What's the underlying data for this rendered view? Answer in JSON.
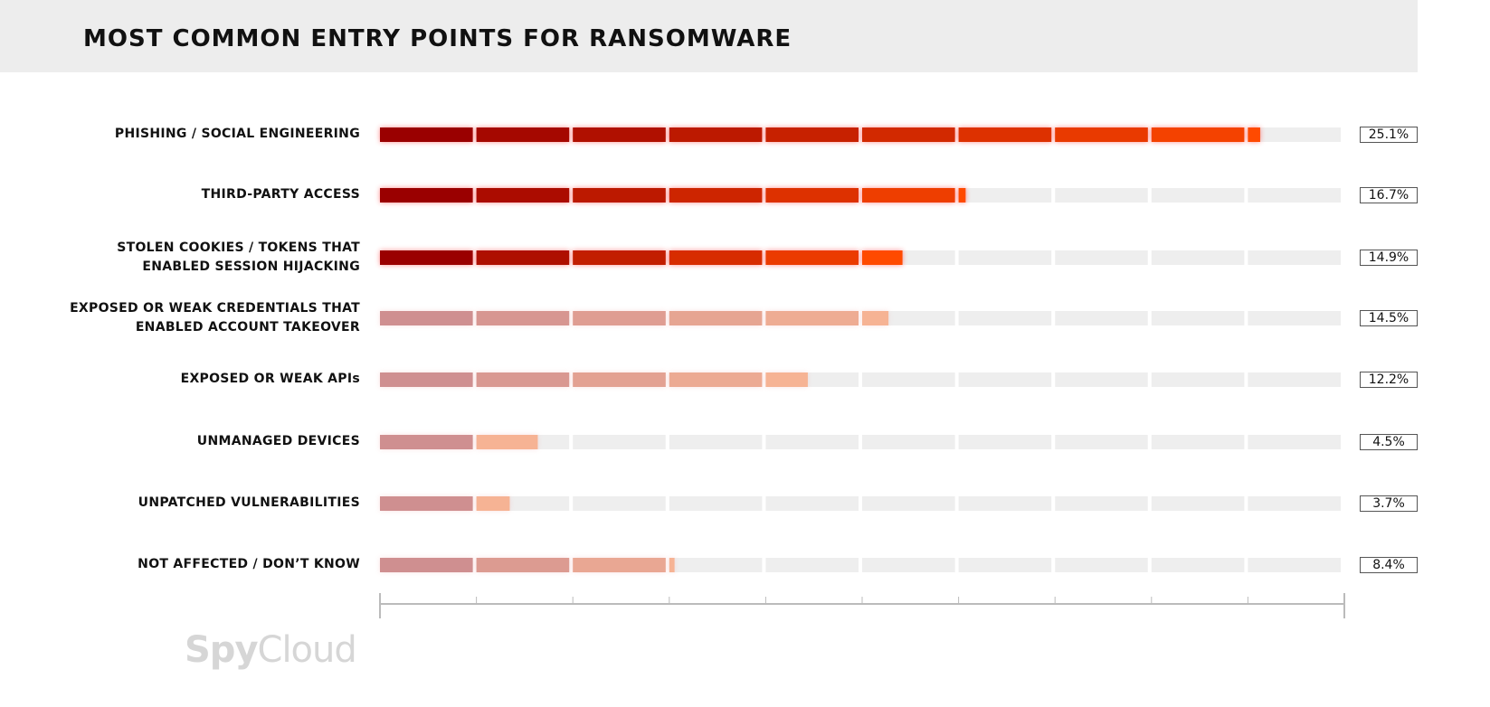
{
  "chart_data": {
    "type": "bar",
    "orientation": "horizontal",
    "title": "MOST COMMON ENTRY POINTS FOR RANSOMWARE",
    "categories": [
      "PHISHING / SOCIAL ENGINEERING",
      "THIRD-PARTY ACCESS",
      "STOLEN COOKIES / TOKENS THAT ENABLED SESSION HIJACKING",
      "EXPOSED OR WEAK CREDENTIALS THAT ENABLED ACCOUNT TAKEOVER",
      "EXPOSED OR WEAK APIs",
      "UNMANAGED DEVICES",
      "UNPATCHED VULNERABILITIES",
      "NOT AFFECTED / DON’T KNOW"
    ],
    "values": [
      25.1,
      16.7,
      14.9,
      14.5,
      12.2,
      4.5,
      3.7,
      8.4
    ],
    "value_labels": [
      "25.1%",
      "16.7%",
      "14.9%",
      "14.5%",
      "12.2%",
      "4.5%",
      "3.7%",
      "8.4%"
    ],
    "highlighted": [
      true,
      true,
      true,
      false,
      false,
      false,
      false,
      false
    ],
    "xlim": [
      0,
      27.5
    ],
    "segments": 10,
    "grid": false,
    "colors": {
      "highlight_start": "#9a0000",
      "highlight_end": "#ff4a00",
      "muted_start": "#cf8f90",
      "muted_end": "#f6b394",
      "track": "#eeeeee",
      "header_bg": "#ededed"
    }
  },
  "brand": {
    "logo_text_bold": "Spy",
    "logo_text_light": "Cloud"
  }
}
